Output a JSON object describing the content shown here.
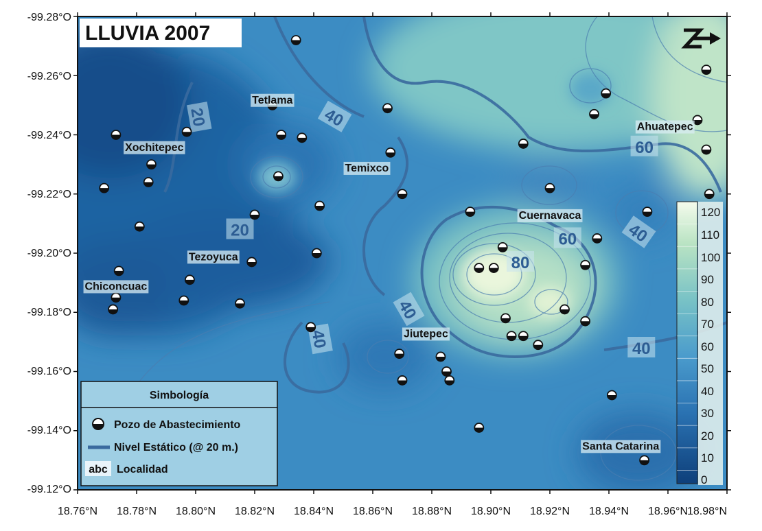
{
  "map": {
    "title": "LLUVIA 2007",
    "x_axis": {
      "ticks": [
        "18.76°N",
        "18.78°N",
        "18.80°N",
        "18.82°N",
        "18.84°N",
        "18.86°N",
        "18.88°N",
        "18.90°N",
        "18.92°N",
        "18.94°N",
        "18.96°N",
        "18.98°N"
      ],
      "range": [
        18.76,
        18.98
      ]
    },
    "y_axis": {
      "ticks": [
        "-99.28°O",
        "-99.26°O",
        "-99.24°O",
        "-99.22°O",
        "-99.20°O",
        "-99.18°O",
        "-99.16°O",
        "-99.14°O",
        "-99.12°O"
      ],
      "range": [
        -99.28,
        -99.12
      ]
    },
    "colors": {
      "deep": "#114f8a",
      "mid": "#2e7ab8",
      "light": "#55a6c9",
      "pale": "#a2d8c4",
      "palest": "#e3f3d6",
      "contour": "#3a6a9e",
      "frame": "#111111"
    },
    "places": [
      {
        "name": "Tetlama",
        "x": 18.826,
        "y": -99.252
      },
      {
        "name": "Xochitepec",
        "x": 18.786,
        "y": -99.236
      },
      {
        "name": "Temixco",
        "x": 18.858,
        "y": -99.229
      },
      {
        "name": "Ahuatepec",
        "x": 18.959,
        "y": -99.243
      },
      {
        "name": "Cuernavaca",
        "x": 18.92,
        "y": -99.213
      },
      {
        "name": "Tezoyuca",
        "x": 18.806,
        "y": -99.199
      },
      {
        "name": "Chiconcuac",
        "x": 18.773,
        "y": -99.189
      },
      {
        "name": "Jiutepec",
        "x": 18.878,
        "y": -99.173
      },
      {
        "name": "Santa Catarina",
        "x": 18.944,
        "y": -99.135
      }
    ],
    "wells": [
      {
        "x": 18.834,
        "y": -99.272
      },
      {
        "x": 18.826,
        "y": -99.25
      },
      {
        "x": 18.829,
        "y": -99.24
      },
      {
        "x": 18.836,
        "y": -99.239
      },
      {
        "x": 18.797,
        "y": -99.241
      },
      {
        "x": 18.773,
        "y": -99.24
      },
      {
        "x": 18.785,
        "y": -99.23
      },
      {
        "x": 18.784,
        "y": -99.224
      },
      {
        "x": 18.769,
        "y": -99.222
      },
      {
        "x": 18.828,
        "y": -99.226
      },
      {
        "x": 18.842,
        "y": -99.216
      },
      {
        "x": 18.82,
        "y": -99.213
      },
      {
        "x": 18.781,
        "y": -99.209
      },
      {
        "x": 18.841,
        "y": -99.2
      },
      {
        "x": 18.819,
        "y": -99.197
      },
      {
        "x": 18.774,
        "y": -99.194
      },
      {
        "x": 18.798,
        "y": -99.191
      },
      {
        "x": 18.773,
        "y": -99.185
      },
      {
        "x": 18.772,
        "y": -99.181
      },
      {
        "x": 18.796,
        "y": -99.184
      },
      {
        "x": 18.815,
        "y": -99.183
      },
      {
        "x": 18.839,
        "y": -99.175
      },
      {
        "x": 18.865,
        "y": -99.249
      },
      {
        "x": 18.866,
        "y": -99.234
      },
      {
        "x": 18.87,
        "y": -99.22
      },
      {
        "x": 18.869,
        "y": -99.166
      },
      {
        "x": 18.87,
        "y": -99.157
      },
      {
        "x": 18.883,
        "y": -99.165
      },
      {
        "x": 18.885,
        "y": -99.16
      },
      {
        "x": 18.886,
        "y": -99.157
      },
      {
        "x": 18.896,
        "y": -99.141
      },
      {
        "x": 18.893,
        "y": -99.214
      },
      {
        "x": 18.896,
        "y": -99.195
      },
      {
        "x": 18.901,
        "y": -99.195
      },
      {
        "x": 18.904,
        "y": -99.202
      },
      {
        "x": 18.905,
        "y": -99.178
      },
      {
        "x": 18.907,
        "y": -99.172
      },
      {
        "x": 18.911,
        "y": -99.172
      },
      {
        "x": 18.916,
        "y": -99.169
      },
      {
        "x": 18.92,
        "y": -99.222
      },
      {
        "x": 18.925,
        "y": -99.181
      },
      {
        "x": 18.932,
        "y": -99.196
      },
      {
        "x": 18.932,
        "y": -99.177
      },
      {
        "x": 18.936,
        "y": -99.205
      },
      {
        "x": 18.935,
        "y": -99.247
      },
      {
        "x": 18.939,
        "y": -99.254
      },
      {
        "x": 18.911,
        "y": -99.237
      },
      {
        "x": 18.941,
        "y": -99.152
      },
      {
        "x": 18.952,
        "y": -99.13
      },
      {
        "x": 18.953,
        "y": -99.214
      },
      {
        "x": 18.97,
        "y": -99.245
      },
      {
        "x": 18.973,
        "y": -99.262
      },
      {
        "x": 18.973,
        "y": -99.235
      },
      {
        "x": 18.974,
        "y": -99.22
      }
    ],
    "contour_labels": [
      {
        "text": "20",
        "x": 18.801,
        "y": -99.246,
        "rot": 80
      },
      {
        "text": "20",
        "x": 18.815,
        "y": -99.208,
        "rot": 0
      },
      {
        "text": "40",
        "x": 18.847,
        "y": -99.246,
        "rot": 30
      },
      {
        "text": "40",
        "x": 18.872,
        "y": -99.181,
        "rot": 60
      },
      {
        "text": "40",
        "x": 18.842,
        "y": -99.171,
        "rot": 80
      },
      {
        "text": "40",
        "x": 18.95,
        "y": -99.207,
        "rot": 35
      },
      {
        "text": "40",
        "x": 18.951,
        "y": -99.168,
        "rot": 0
      },
      {
        "text": "60",
        "x": 18.952,
        "y": -99.236,
        "rot": 0
      },
      {
        "text": "60",
        "x": 18.926,
        "y": -99.205,
        "rot": 0
      },
      {
        "text": "80",
        "x": 18.91,
        "y": -99.197,
        "rot": 0
      }
    ],
    "legend": {
      "title": "Simbología",
      "items": [
        {
          "icon": "well-icon",
          "label": "Pozo de Abastecimiento"
        },
        {
          "icon": "contour-line-icon",
          "label": "Nivel Estático (@ 20 m.)"
        },
        {
          "icon": "abc",
          "label": "Localidad"
        }
      ]
    },
    "colorbar": {
      "ticks": [
        "120",
        "110",
        "100",
        "90",
        "80",
        "70",
        "60",
        "50",
        "40",
        "30",
        "20",
        "10",
        "0"
      ]
    },
    "north_arrow": "north-arrow-icon"
  }
}
